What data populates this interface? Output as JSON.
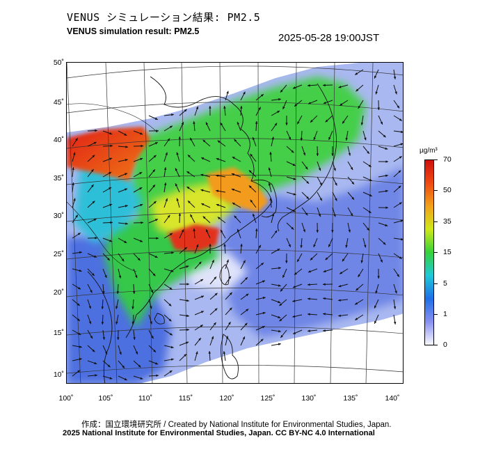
{
  "header": {
    "title_jp": "VENUS シミュレーション結果: PM2.5",
    "title_en": "VENUS simulation result: PM2.5",
    "timestamp": "2025-05-28 19:00JST"
  },
  "map": {
    "lat_labels": [
      "50˚",
      "45˚",
      "40˚",
      "35˚",
      "30˚",
      "25˚",
      "20˚",
      "15˚",
      "10˚"
    ],
    "lon_labels": [
      "100˚",
      "105˚",
      "110˚",
      "115˚",
      "120˚",
      "125˚",
      "130˚",
      "135˚",
      "140˚"
    ]
  },
  "colorbar": {
    "unit": "µg/m³",
    "labels": [
      "70",
      "50",
      "35",
      "15",
      "5",
      "1",
      "0"
    ],
    "colors": [
      "#f8f8ff",
      "#8890f0",
      "#1f6fe8",
      "#1ec9d8",
      "#36d23a",
      "#cfe81a",
      "#f2a21a",
      "#f04a12",
      "#d01010"
    ]
  },
  "footer": {
    "credit": "作成：国立環境研究所 / Created by National Institute for Environmental Studies, Japan.",
    "license": "2025 National Institute for Environmental Studies, Japan. CC BY-NC 4.0 International"
  }
}
